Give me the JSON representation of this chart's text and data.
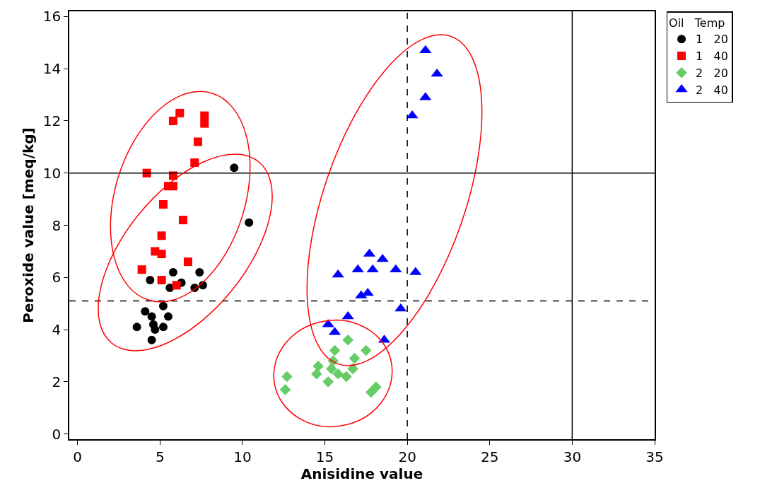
{
  "chart_data": {
    "type": "scatter",
    "xlabel": "Anisidine value",
    "ylabel": "Peroxide value [meq/kg]",
    "legend_title": "Oil   Temp",
    "legend": "top right",
    "grid": false,
    "xlim": [
      -0.5,
      35
    ],
    "xticks": [
      0,
      5,
      10,
      15,
      20,
      25,
      30,
      35
    ],
    "ylim": [
      -0.2,
      16.2
    ],
    "yticks": [
      0,
      2,
      4,
      6,
      8,
      10,
      12,
      14,
      16
    ],
    "ref_lines": [
      {
        "axis": "y",
        "value": 10,
        "line_style": "solid",
        "color": "#000000"
      },
      {
        "axis": "y",
        "value": 5.1,
        "line_style": "dashed",
        "color": "#000000"
      },
      {
        "axis": "x",
        "value": 20,
        "line_style": "dashed",
        "color": "#000000"
      },
      {
        "axis": "x",
        "value": 30,
        "line_style": "solid",
        "color": "#000000"
      }
    ],
    "series": [
      {
        "name": "1   20",
        "color": "#000000",
        "marker": "circle",
        "x": [
          9.5,
          10.4,
          4.4,
          5.8,
          6.3,
          5.6,
          7.4,
          7.6,
          7.1,
          5.2,
          4.1,
          4.5,
          5.5,
          3.6,
          4.6,
          4.7,
          5.2,
          4.5
        ],
        "values": [
          10.2,
          8.1,
          5.9,
          6.2,
          5.8,
          5.6,
          6.2,
          5.7,
          5.6,
          4.9,
          4.7,
          4.5,
          4.5,
          4.1,
          4.2,
          4.0,
          4.1,
          3.6
        ]
      },
      {
        "name": "1   40",
        "color": "#ff0000",
        "marker": "square",
        "x": [
          6.2,
          5.8,
          7.7,
          7.7,
          7.3,
          7.1,
          4.2,
          5.8,
          5.5,
          5.8,
          5.2,
          6.4,
          5.1,
          4.7,
          5.1,
          6.7,
          3.9,
          5.1,
          6.0
        ],
        "values": [
          12.3,
          12.0,
          12.2,
          11.9,
          11.2,
          10.4,
          10.0,
          9.9,
          9.5,
          9.5,
          8.8,
          8.2,
          7.6,
          7.0,
          6.9,
          6.6,
          6.3,
          5.9,
          5.7
        ]
      },
      {
        "name": "2   20",
        "color": "#66cc66",
        "marker": "diamond",
        "x": [
          16.4,
          17.5,
          15.6,
          16.8,
          15.5,
          14.6,
          12.7,
          14.5,
          15.4,
          15.8,
          16.7,
          16.3,
          15.2,
          12.6,
          17.8,
          18.1
        ],
        "values": [
          3.6,
          3.2,
          3.2,
          2.9,
          2.8,
          2.6,
          2.2,
          2.3,
          2.5,
          2.3,
          2.5,
          2.2,
          2.0,
          1.7,
          1.6,
          1.8
        ]
      },
      {
        "name": "2   40",
        "color": "#0000ff",
        "marker": "triangle",
        "x": [
          21.1,
          21.8,
          21.1,
          20.3,
          20.5,
          17.7,
          18.5,
          15.8,
          17.0,
          17.9,
          19.3,
          17.2,
          17.6,
          19.6,
          16.4,
          15.2,
          15.6,
          18.6
        ],
        "values": [
          14.7,
          13.8,
          12.9,
          12.2,
          6.2,
          6.9,
          6.7,
          6.1,
          6.3,
          6.3,
          6.3,
          5.3,
          5.4,
          4.8,
          4.5,
          4.2,
          3.9,
          3.6
        ]
      }
    ]
  }
}
